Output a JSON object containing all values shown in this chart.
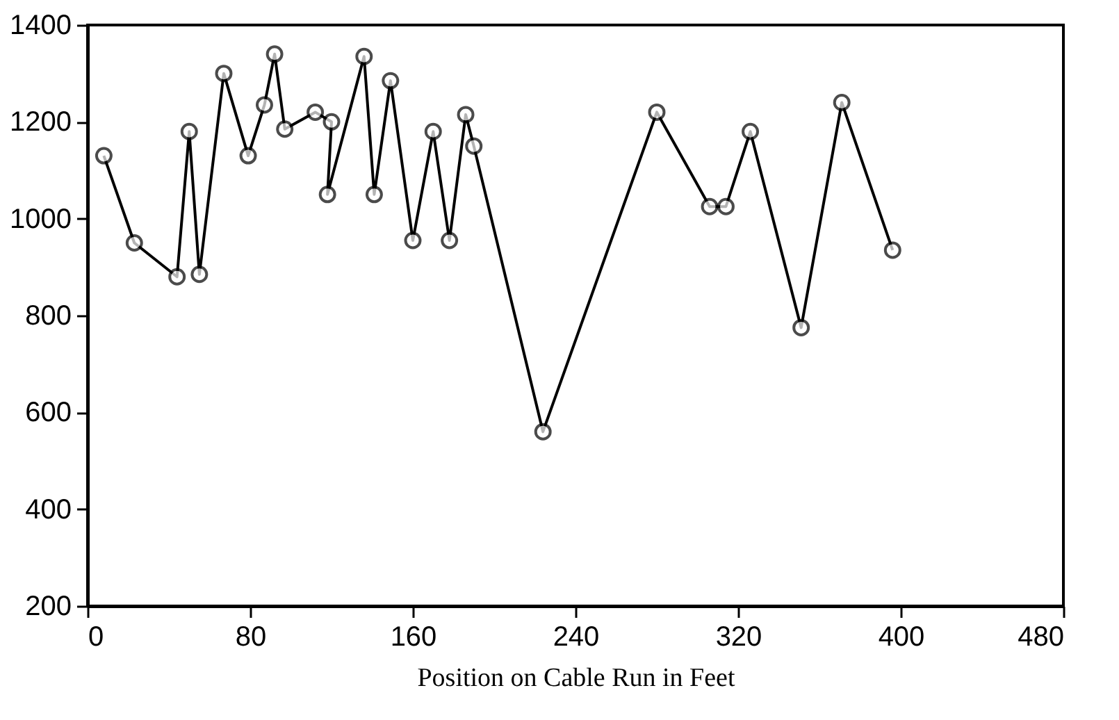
{
  "chart_data": {
    "type": "line",
    "xlabel": "Position on Cable Run in Feet",
    "x": [
      8,
      23,
      44,
      50,
      55,
      67,
      79,
      87,
      92,
      97,
      112,
      120,
      118,
      136,
      141,
      149,
      160,
      170,
      178,
      186,
      190,
      224,
      280,
      306,
      314,
      326,
      351,
      371,
      396
    ],
    "series": [
      {
        "color": "#000000",
        "values": [
          1130,
          950,
          880,
          1180,
          885,
          1300,
          1130,
          1235,
          1340,
          1185,
          1220,
          1200,
          1050,
          1335,
          1050,
          1285,
          955,
          1180,
          955,
          1215,
          1150,
          560,
          1220,
          1025,
          1025,
          1180,
          775,
          1240,
          935
        ]
      }
    ],
    "xlim": [
      0,
      480
    ],
    "xticks": [
      0,
      80,
      160,
      240,
      320,
      400,
      480
    ],
    "ylim": [
      200,
      1400
    ],
    "yticks": [
      200,
      400,
      600,
      800,
      1000,
      1200,
      1400
    ],
    "grid": false,
    "legend": false,
    "marker": "circle",
    "line_style": "solid"
  }
}
